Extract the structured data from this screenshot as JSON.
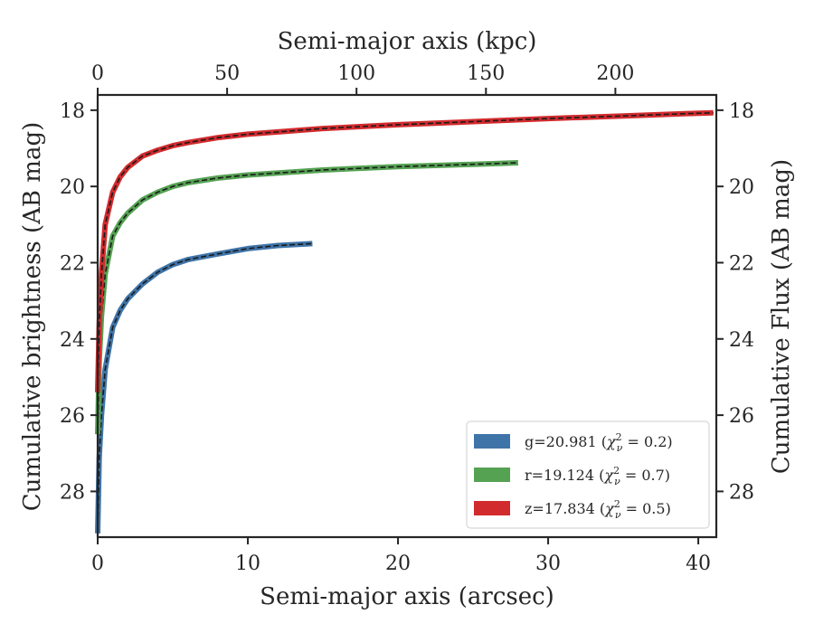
{
  "chart_data": {
    "type": "line",
    "xlabel": "Semi-major axis (arcsec)",
    "x2label": "Semi-major axis (kpc)",
    "ylabel": "Cumulative brightness (AB mag)",
    "y2label": "Cumulative Flux (AB mag)",
    "xlim": [
      0,
      41.2
    ],
    "x2lim": [
      0,
      239.0
    ],
    "ylim": [
      29.2,
      17.6
    ],
    "y_inverted": true,
    "xticks": [
      0,
      10,
      20,
      30,
      40
    ],
    "x2ticks": [
      0,
      50,
      100,
      150,
      200
    ],
    "yticks": [
      18,
      20,
      22,
      24,
      26,
      28
    ],
    "legend_position": "lower-right",
    "model_line_style": "black dashed",
    "series": [
      {
        "name": "g=20.981",
        "chi2": "0.2",
        "color": "#3f74a8",
        "x": [
          0.0,
          0.1,
          0.25,
          0.5,
          1.0,
          1.5,
          2.0,
          3.0,
          4.0,
          5.0,
          6.0,
          8.0,
          10.0,
          12.0,
          14.3
        ],
        "y": [
          29.1,
          27.1,
          26.0,
          24.8,
          23.7,
          23.25,
          22.95,
          22.55,
          22.25,
          22.05,
          21.92,
          21.77,
          21.63,
          21.55,
          21.5
        ]
      },
      {
        "name": "r=19.124",
        "chi2": "0.7",
        "color": "#55a253",
        "x": [
          0.0,
          0.1,
          0.25,
          0.5,
          1.0,
          1.5,
          2.0,
          3.0,
          4.0,
          5.0,
          6.0,
          8.0,
          10.0,
          15.0,
          20.0,
          25.0,
          28.0
        ],
        "y": [
          26.5,
          24.6,
          23.4,
          22.3,
          21.3,
          20.95,
          20.7,
          20.35,
          20.15,
          20.0,
          19.9,
          19.78,
          19.7,
          19.57,
          19.48,
          19.42,
          19.38
        ]
      },
      {
        "name": "z=17.834",
        "chi2": "0.5",
        "color": "#d22b2e",
        "x": [
          0.0,
          0.1,
          0.25,
          0.5,
          1.0,
          1.5,
          2.0,
          3.0,
          4.0,
          5.0,
          6.0,
          8.0,
          10.0,
          15.0,
          20.0,
          25.0,
          30.0,
          35.0,
          40.0,
          41.0
        ],
        "y": [
          25.4,
          23.6,
          22.3,
          21.0,
          20.15,
          19.75,
          19.5,
          19.2,
          19.05,
          18.93,
          18.85,
          18.72,
          18.63,
          18.48,
          18.38,
          18.3,
          18.22,
          18.15,
          18.08,
          18.07
        ]
      }
    ]
  }
}
